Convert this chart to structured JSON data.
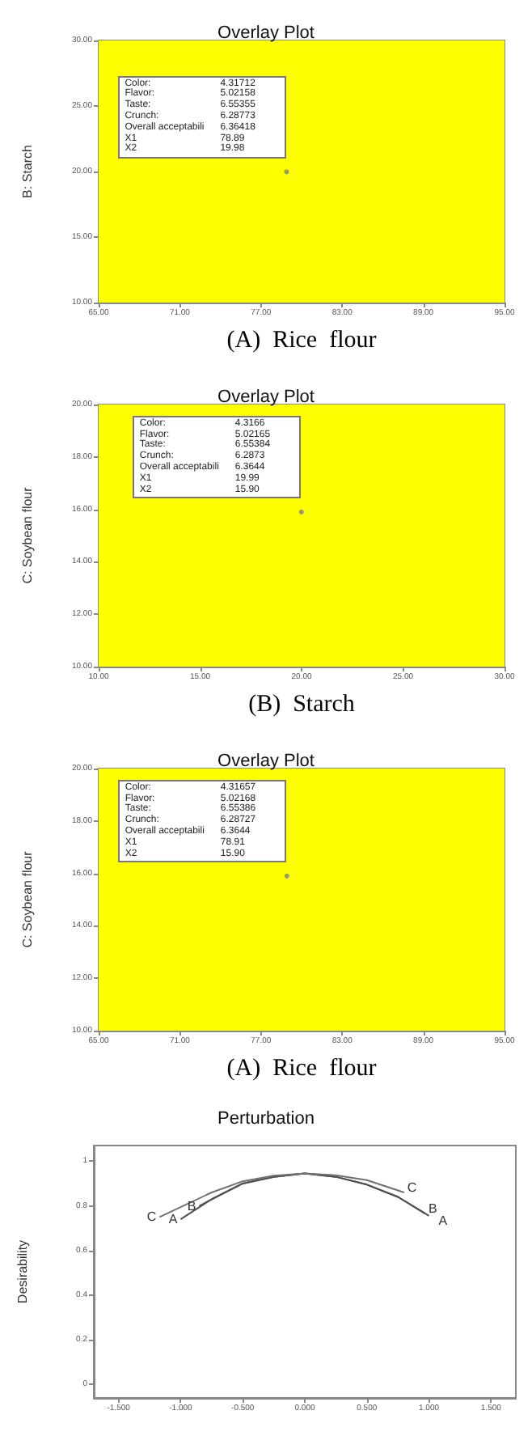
{
  "chart_data": [
    {
      "type": "scatter",
      "title": "Overlay Plot",
      "xlabel": "(A)  Rice  flour",
      "ylabel": "B: Starch",
      "x": [
        78.89
      ],
      "values": [
        19.98
      ],
      "color": "#808080",
      "xlim": [
        65,
        95
      ],
      "xticks": [
        {
          "value": 65,
          "label": "65.00"
        },
        {
          "value": 71,
          "label": "71.00"
        },
        {
          "value": 77,
          "label": "77.00"
        },
        {
          "value": 83,
          "label": "83.00"
        },
        {
          "value": 89,
          "label": "89.00"
        },
        {
          "value": 95,
          "label": "95.00"
        }
      ],
      "ylim": [
        10,
        30
      ],
      "yticks": [
        {
          "value": 10,
          "label": "10.00"
        },
        {
          "value": 15,
          "label": "15.00"
        },
        {
          "value": 20,
          "label": "20.00"
        },
        {
          "value": 25,
          "label": "25.00"
        },
        {
          "value": 30,
          "label": "30.00"
        }
      ],
      "bands": [
        {
          "axis": "x",
          "from": 65,
          "to": 95,
          "color": "#ffff00"
        }
      ],
      "annotations": [
        "Color: 4.31712",
        "Flavor: 5.02158",
        "Taste: 6.55355",
        "Crunch: 6.28773",
        "Overall acceptabili 6.36418",
        "X1 78.89",
        "X2 19.98"
      ],
      "grid": false,
      "legend": false
    },
    {
      "type": "scatter",
      "title": "Overlay Plot",
      "xlabel": "(B)  Starch",
      "ylabel": "C: Soybean flour",
      "x": [
        19.99
      ],
      "values": [
        15.9
      ],
      "color": "#808080",
      "xlim": [
        10,
        30
      ],
      "xticks": [
        {
          "value": 10,
          "label": "10.00"
        },
        {
          "value": 15,
          "label": "15.00"
        },
        {
          "value": 20,
          "label": "20.00"
        },
        {
          "value": 25,
          "label": "25.00"
        },
        {
          "value": 30,
          "label": "30.00"
        }
      ],
      "ylim": [
        10,
        20
      ],
      "yticks": [
        {
          "value": 10,
          "label": "10.00"
        },
        {
          "value": 12,
          "label": "12.00"
        },
        {
          "value": 14,
          "label": "14.00"
        },
        {
          "value": 16,
          "label": "16.00"
        },
        {
          "value": 18,
          "label": "18.00"
        },
        {
          "value": 20,
          "label": "20.00"
        }
      ],
      "bands": [
        {
          "axis": "x",
          "from": 10,
          "to": 30,
          "color": "#ffff00"
        }
      ],
      "annotations": [
        "Color: 4.3166",
        "Flavor: 5.02165",
        "Taste: 6.55384",
        "Crunch: 6.2873",
        "Overall acceptabili 6.3644",
        "X1 19.99",
        "X2 15.90"
      ],
      "grid": false,
      "legend": false
    },
    {
      "type": "scatter",
      "title": "Overlay Plot",
      "xlabel": "(A)  Rice  flour",
      "ylabel": "C: Soybean flour",
      "x": [
        78.91
      ],
      "values": [
        15.9
      ],
      "color": "#808080",
      "xlim": [
        65,
        95
      ],
      "xticks": [
        {
          "value": 65,
          "label": "65.00"
        },
        {
          "value": 71,
          "label": "71.00"
        },
        {
          "value": 77,
          "label": "77.00"
        },
        {
          "value": 83,
          "label": "83.00"
        },
        {
          "value": 89,
          "label": "89.00"
        },
        {
          "value": 95,
          "label": "95.00"
        }
      ],
      "ylim": [
        10,
        20
      ],
      "yticks": [
        {
          "value": 10,
          "label": "10.00"
        },
        {
          "value": 12,
          "label": "12.00"
        },
        {
          "value": 14,
          "label": "14.00"
        },
        {
          "value": 16,
          "label": "16.00"
        },
        {
          "value": 18,
          "label": "18.00"
        },
        {
          "value": 20,
          "label": "20.00"
        }
      ],
      "bands": [
        {
          "axis": "x",
          "from": 65,
          "to": 95,
          "color": "#ffff00"
        }
      ],
      "annotations": [
        "Color: 4.31657",
        "Flavor: 5.02168",
        "Taste: 6.55386",
        "Crunch: 6.28727",
        "Overall acceptabili 6.3644",
        "X1 78.91",
        "X2 15.90"
      ],
      "grid": false,
      "legend": false
    },
    {
      "type": "line",
      "title": "Perturbation",
      "ylabel": "Desirability",
      "marker": "none",
      "grid": false,
      "legend": false,
      "xlim": [
        -1.7,
        1.7
      ],
      "xticks": [
        {
          "value": -1.5,
          "label": "-1.500"
        },
        {
          "value": -1,
          "label": "-1.000"
        },
        {
          "value": -0.5,
          "label": "-0.500"
        },
        {
          "value": 0,
          "label": "0.000"
        },
        {
          "value": 0.5,
          "label": "0.500"
        },
        {
          "value": 1,
          "label": "1.000"
        },
        {
          "value": 1.5,
          "label": "1.500"
        }
      ],
      "ylim": [
        -0.06,
        1.07
      ],
      "yticks": [
        0,
        0.2,
        0.4,
        0.6,
        0.8,
        1
      ],
      "series": [
        {
          "name": "A",
          "color": "#505050",
          "x": [
            -1,
            -0.75,
            -0.5,
            -0.25,
            0,
            0.25,
            0.5,
            0.75,
            1
          ],
          "values": [
            0.74,
            0.83,
            0.9,
            0.93,
            0.945,
            0.93,
            0.895,
            0.84,
            0.755
          ]
        },
        {
          "name": "B",
          "color": "#505050",
          "x": [
            -0.85,
            -0.5,
            -0.25,
            0,
            0.25,
            0.5,
            0.75,
            0.97
          ],
          "values": [
            0.8,
            0.9,
            0.93,
            0.945,
            0.93,
            0.895,
            0.84,
            0.765
          ]
        },
        {
          "name": "C",
          "color": "#707070",
          "x": [
            -1.17,
            -0.75,
            -0.5,
            -0.25,
            0,
            0.25,
            0.5,
            0.8
          ],
          "values": [
            0.75,
            0.86,
            0.91,
            0.935,
            0.945,
            0.937,
            0.915,
            0.86
          ]
        }
      ]
    }
  ]
}
